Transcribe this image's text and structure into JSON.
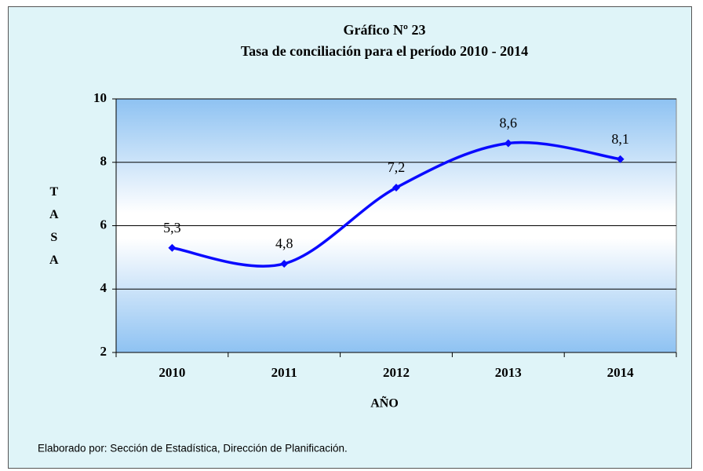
{
  "chart_data": {
    "type": "line",
    "title": "Gráfico Nº 23",
    "subtitle": "Tasa de conciliación  para el período  2010 - 2014",
    "x_label": "AÑO",
    "y_label": "TASA",
    "note": "Elaborado por: Sección de Estadística,  Dirección de Planificación.",
    "categories": [
      "2010",
      "2011",
      "2012",
      "2013",
      "2014"
    ],
    "values": [
      5.3,
      4.8,
      7.2,
      8.6,
      8.1
    ],
    "value_labels": [
      "5,3",
      "4,8",
      "7,2",
      "8,6",
      "8,1"
    ],
    "color": "#0a0aff",
    "ylim": [
      2,
      10
    ],
    "yticks": [
      2,
      4,
      6,
      8,
      10
    ],
    "grid": true
  }
}
